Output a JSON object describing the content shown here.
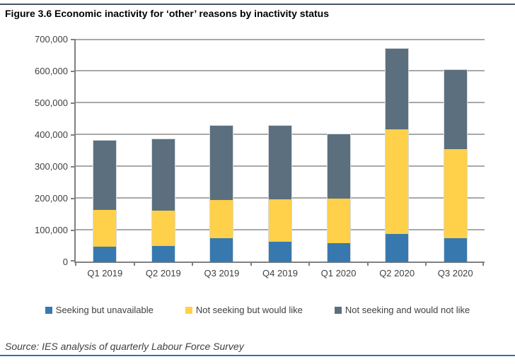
{
  "header": {
    "title": "Figure 3.6 Economic inactivity for ‘other’ reasons by inactivity status"
  },
  "footer": {
    "source": "Source: IES analysis of quarterly Labour Force Survey"
  },
  "colors": {
    "top_rule": "#44546A",
    "bottom_rule": "#2E74B5",
    "gridline": "#A8A8A8",
    "axis": "#808080",
    "axis_text": "#404040"
  },
  "chart_data": {
    "type": "bar",
    "stacked": true,
    "title": "Figure 3.6 Economic inactivity for ‘other’ reasons by inactivity status",
    "categories": [
      "Q1 2019",
      "Q2 2019",
      "Q3 2019",
      "Q4 2019",
      "Q1 2020",
      "Q2 2020",
      "Q3 2020"
    ],
    "series": [
      {
        "name": "Seeking but unavailable",
        "color": "#3779AF",
        "values": [
          50000,
          52000,
          75000,
          65000,
          60000,
          90000,
          75000
        ]
      },
      {
        "name": "Not seeking but would like",
        "color": "#FFD04A",
        "values": [
          115000,
          110000,
          120000,
          132000,
          140000,
          328000,
          280000
        ]
      },
      {
        "name": "Not seeking and would not like",
        "color": "#5B6F7E",
        "values": [
          218000,
          224000,
          235000,
          232000,
          202000,
          253000,
          250000
        ]
      }
    ],
    "totals": [
      383000,
      386000,
      430000,
      429000,
      402000,
      671000,
      605000
    ],
    "xlabel": "",
    "ylabel": "",
    "ylim": [
      0,
      700000
    ],
    "ytick_step": 100000,
    "ytick_labels": [
      "0",
      "100,000",
      "200,000",
      "300,000",
      "400,000",
      "500,000",
      "600,000",
      "700,000"
    ],
    "grid": "horizontal",
    "legend_position": "bottom"
  }
}
